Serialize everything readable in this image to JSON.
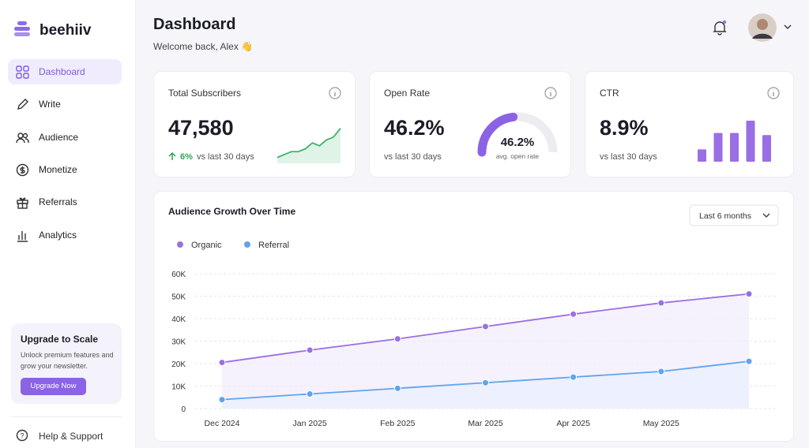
{
  "brand": "beehiiv",
  "nav": [
    "Dashboard",
    "Write",
    "Audience",
    "Monetize",
    "Referrals",
    "Analytics"
  ],
  "upgrade": {
    "title": "Upgrade to Scale",
    "text": "Unlock premium features and grow your newsletter.",
    "button": "Upgrade Now"
  },
  "help": "Help & Support",
  "header": {
    "title": "Dashboard",
    "subtitle": "Welcome back, Alex 👋"
  },
  "cards": [
    {
      "title": "Total Subscribers",
      "value": "47,580",
      "change": "6%",
      "note": "vs last 30 days",
      "sparkline": [
        2,
        3,
        4,
        4,
        5,
        7,
        6,
        8,
        9,
        12
      ],
      "sparkline_ylim": [
        0,
        13
      ]
    },
    {
      "title": "Open Rate",
      "value": "46.2%",
      "note": "vs last 30 days",
      "gauge": {
        "value": 46.2,
        "label": "46.2%"
      },
      "gauge_lim": [
        0,
        100
      ],
      "gauge_caption": "avg. open rate"
    },
    {
      "title": "CTR",
      "value": "8.9%",
      "note": "vs last 30 days",
      "bars": [
        3,
        7,
        7,
        10,
        6.5
      ],
      "bars_ylim": [
        0,
        10
      ]
    }
  ],
  "chart_data": {
    "type": "line",
    "title": "Audience Growth Over Time",
    "range": "Last 6 months",
    "categories": [
      "Dec 2024",
      "Jan 2025",
      "Feb 2025",
      "Mar 2025",
      "Apr 2025",
      "May 2025",
      null
    ],
    "series": [
      {
        "name": "Organic",
        "color": "#9b6fe0",
        "values": [
          20500,
          26000,
          31000,
          36500,
          42000,
          47000,
          51000
        ]
      },
      {
        "name": "Referral",
        "color": "#5ea4ee",
        "values": [
          4000,
          6500,
          9000,
          11500,
          14000,
          16500,
          21000
        ]
      }
    ],
    "ylim": [
      0,
      60000
    ],
    "yticks": [
      0,
      {
        "value": 10000,
        "label": "10K"
      },
      {
        "value": 20000,
        "label": "20K"
      },
      {
        "value": 30000,
        "label": "30K"
      },
      {
        "value": 40000,
        "label": "40K"
      },
      {
        "value": 50000,
        "label": "50K"
      },
      {
        "value": 60000,
        "label": "60K"
      }
    ],
    "grid": true
  }
}
